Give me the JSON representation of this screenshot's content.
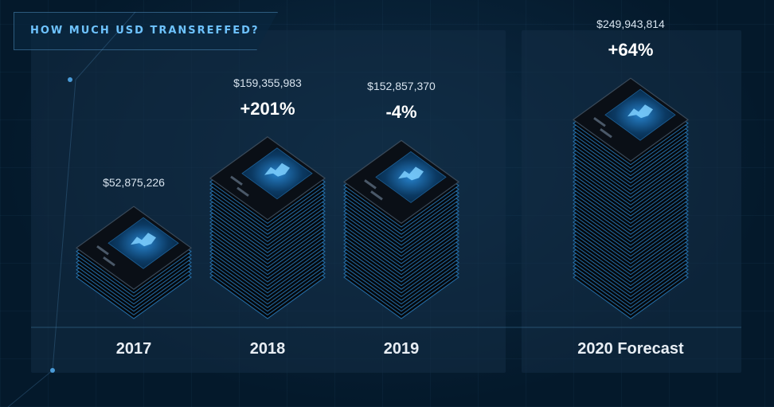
{
  "title": "HOW MUCH USD TRANSREFFED?",
  "colors": {
    "accent": "#6ec3ff",
    "background": "#04192b",
    "panel": "#14304a",
    "glow": "#3aa6ff"
  },
  "chart_data": {
    "type": "bar",
    "title": "HOW MUCH USD TRANSREFFED?",
    "categories": [
      "2017",
      "2018",
      "2019",
      "2020 Forecast"
    ],
    "values": [
      52875226,
      159355983,
      152857370,
      249943814
    ],
    "value_labels": [
      "$52,875,226",
      "$159,355,983",
      "$152,857,370",
      "$249,943,814"
    ],
    "change_labels": [
      "",
      "+201%",
      "-4%",
      "+64%"
    ],
    "xlabel": "",
    "ylabel": ""
  }
}
